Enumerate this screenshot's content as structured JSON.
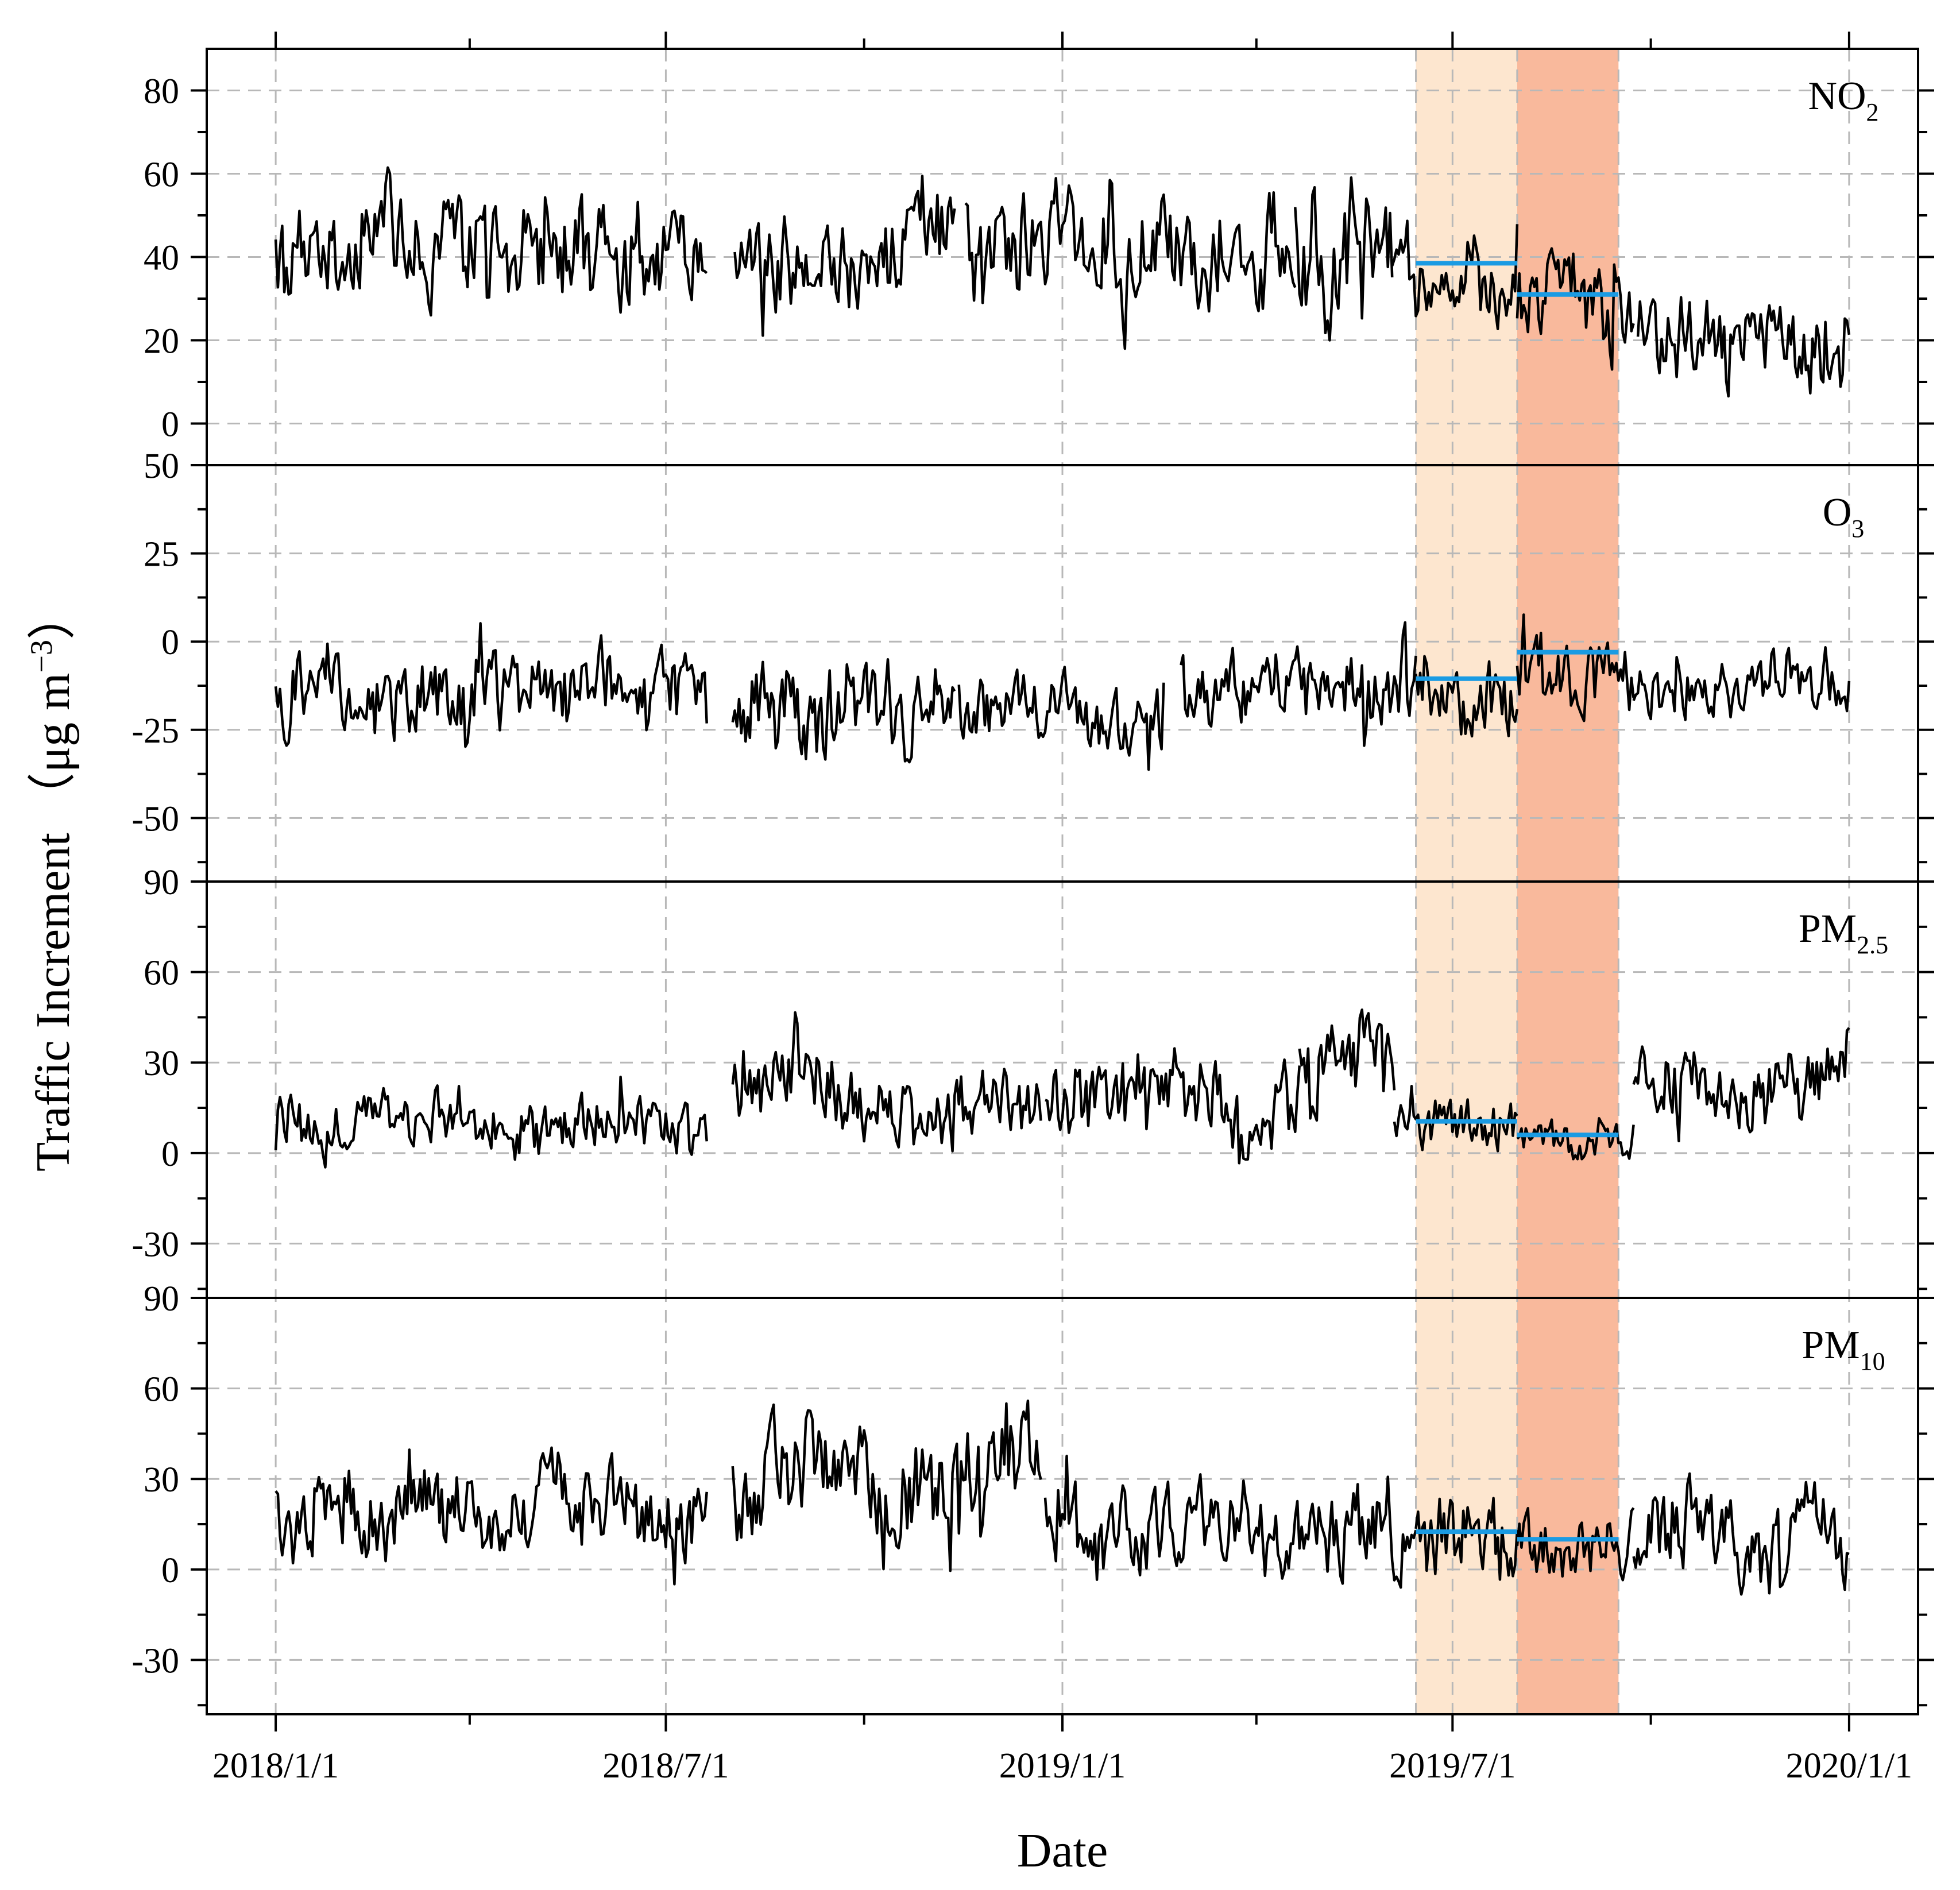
{
  "chart_data": {
    "type": "line",
    "xlabel": "Date",
    "ylabel": "Traffic Increment （μg m",
    "ylabel_superscript": "−3",
    "ylabel_close": "）",
    "x_ticks": [
      {
        "label": "2018/1/1",
        "day": 0
      },
      {
        "label": "2018/7/1",
        "day": 181
      },
      {
        "label": "2019/1/1",
        "day": 365
      },
      {
        "label": "2019/7/1",
        "day": 546
      },
      {
        "label": "2020/1/1",
        "day": 730
      }
    ],
    "x_minor_ticks_days": [
      90,
      273,
      455,
      638
    ],
    "xlim_days": [
      -32,
      762
    ],
    "shaded_periods": [
      {
        "name": "period-1",
        "start_day": 529,
        "end_day": 576,
        "color": "#fde6cf"
      },
      {
        "name": "period-2",
        "start_day": 576,
        "end_day": 623,
        "color": "#f9b99c"
      }
    ],
    "panels": [
      {
        "id": "no2",
        "label": "NO",
        "label_sub": "2",
        "ylim": [
          -10,
          90
        ],
        "y_ticks": [
          0,
          20,
          40,
          60,
          80
        ],
        "y_tick_labels": [
          "0",
          "20",
          "40",
          "60",
          "80"
        ],
        "y_minor_step": 10,
        "top_label": "",
        "mean_lines": [
          {
            "start_day": 529,
            "end_day": 576,
            "value": 38.5
          },
          {
            "start_day": 576,
            "end_day": 623,
            "value": 31
          }
        ],
        "segments": [
          {
            "start": 0,
            "end": 200,
            "base": 40,
            "amp": 13,
            "seed": 11,
            "min": 5,
            "max": 70
          },
          {
            "start": 213,
            "end": 315,
            "base": 44,
            "amp": 13,
            "seed": 23,
            "min": 10,
            "max": 72
          },
          {
            "start": 320,
            "end": 473,
            "base": 42,
            "amp": 12,
            "seed": 37,
            "min": 18,
            "max": 66
          },
          {
            "start": 473,
            "end": 518,
            "base": 40,
            "amp": 15,
            "seed": 41,
            "min": 20,
            "max": 82
          },
          {
            "start": 518,
            "end": 576,
            "base": 35,
            "amp": 11,
            "seed": 53,
            "min": 20,
            "max": 65
          },
          {
            "start": 576,
            "end": 630,
            "base": 30,
            "amp": 12,
            "seed": 61,
            "min": 13,
            "max": 68
          },
          {
            "start": 632,
            "end": 730,
            "base": 24,
            "amp": 11,
            "seed": 71,
            "min": 1,
            "max": 50
          }
        ]
      },
      {
        "id": "o3",
        "label": "O",
        "label_sub": "3",
        "ylim": [
          -68,
          50
        ],
        "y_ticks": [
          -50,
          -25,
          0,
          25
        ],
        "y_tick_labels": [
          "-50",
          "-25",
          "0",
          "25"
        ],
        "y_minor_step": 12.5,
        "top_label": "50",
        "mean_lines": [
          {
            "start_day": 529,
            "end_day": 576,
            "value": -10.5
          },
          {
            "start_day": 576,
            "end_day": 623,
            "value": -3
          }
        ],
        "segments": [
          {
            "start": 0,
            "end": 200,
            "base": -15,
            "amp": 12,
            "seed": 101,
            "min": -57,
            "max": 25
          },
          {
            "start": 212,
            "end": 315,
            "base": -18,
            "amp": 14,
            "seed": 113,
            "min": -58,
            "max": 10
          },
          {
            "start": 317,
            "end": 412,
            "base": -20,
            "amp": 10,
            "seed": 127,
            "min": -45,
            "max": 11
          },
          {
            "start": 420,
            "end": 529,
            "base": -14,
            "amp": 11,
            "seed": 131,
            "min": -45,
            "max": 10
          },
          {
            "start": 529,
            "end": 576,
            "base": -12,
            "amp": 12,
            "seed": 139,
            "min": -41,
            "max": 15
          },
          {
            "start": 576,
            "end": 630,
            "base": -6,
            "amp": 11,
            "seed": 149,
            "min": -37,
            "max": 34
          },
          {
            "start": 630,
            "end": 730,
            "base": -14,
            "amp": 9,
            "seed": 157,
            "min": -49,
            "max": 6
          }
        ]
      },
      {
        "id": "pm25",
        "label": "PM",
        "label_sub": "2.5",
        "ylim": [
          -48,
          90
        ],
        "y_ticks": [
          -30,
          0,
          30,
          60
        ],
        "y_tick_labels": [
          "-30",
          "0",
          "30",
          "60"
        ],
        "y_minor_step": 15,
        "top_label": "90",
        "mean_lines": [
          {
            "start_day": 529,
            "end_day": 576,
            "value": 10.5
          },
          {
            "start_day": 576,
            "end_day": 623,
            "value": 6
          }
        ],
        "segments": [
          {
            "start": 0,
            "end": 200,
            "base": 10,
            "amp": 10,
            "seed": 211,
            "min": -13,
            "max": 57
          },
          {
            "start": 212,
            "end": 355,
            "base": 17,
            "amp": 13,
            "seed": 223,
            "min": -42,
            "max": 52
          },
          {
            "start": 357,
            "end": 475,
            "base": 13,
            "amp": 14,
            "seed": 227,
            "min": -38,
            "max": 44
          },
          {
            "start": 475,
            "end": 519,
            "base": 32,
            "amp": 16,
            "seed": 229,
            "min": 5,
            "max": 66
          },
          {
            "start": 519,
            "end": 576,
            "base": 10,
            "amp": 8,
            "seed": 233,
            "min": 0,
            "max": 35
          },
          {
            "start": 576,
            "end": 630,
            "base": 6,
            "amp": 6,
            "seed": 239,
            "min": -2,
            "max": 30
          },
          {
            "start": 630,
            "end": 730,
            "base": 24,
            "amp": 12,
            "seed": 241,
            "min": 3,
            "max": 58
          }
        ]
      },
      {
        "id": "pm10",
        "label": "PM",
        "label_sub": "10",
        "ylim": [
          -48,
          90
        ],
        "y_ticks": [
          -30,
          0,
          30,
          60
        ],
        "y_tick_labels": [
          "-30",
          "0",
          "30",
          "60"
        ],
        "y_minor_step": 15,
        "top_label": "90",
        "mean_lines": [
          {
            "start_day": 529,
            "end_day": 576,
            "value": 12.5
          },
          {
            "start_day": 576,
            "end_day": 623,
            "value": 10
          }
        ],
        "segments": [
          {
            "start": 0,
            "end": 200,
            "base": 18,
            "amp": 14,
            "seed": 307,
            "min": -23,
            "max": 60
          },
          {
            "start": 212,
            "end": 355,
            "base": 25,
            "amp": 18,
            "seed": 311,
            "min": -23,
            "max": 81
          },
          {
            "start": 357,
            "end": 529,
            "base": 18,
            "amp": 16,
            "seed": 313,
            "min": -30,
            "max": 65
          },
          {
            "start": 529,
            "end": 576,
            "base": 10,
            "amp": 14,
            "seed": 317,
            "min": -31,
            "max": 37
          },
          {
            "start": 576,
            "end": 630,
            "base": 10,
            "amp": 12,
            "seed": 331,
            "min": -10,
            "max": 54
          },
          {
            "start": 630,
            "end": 730,
            "base": 12,
            "amp": 15,
            "seed": 337,
            "min": -26,
            "max": 55
          }
        ]
      }
    ]
  }
}
